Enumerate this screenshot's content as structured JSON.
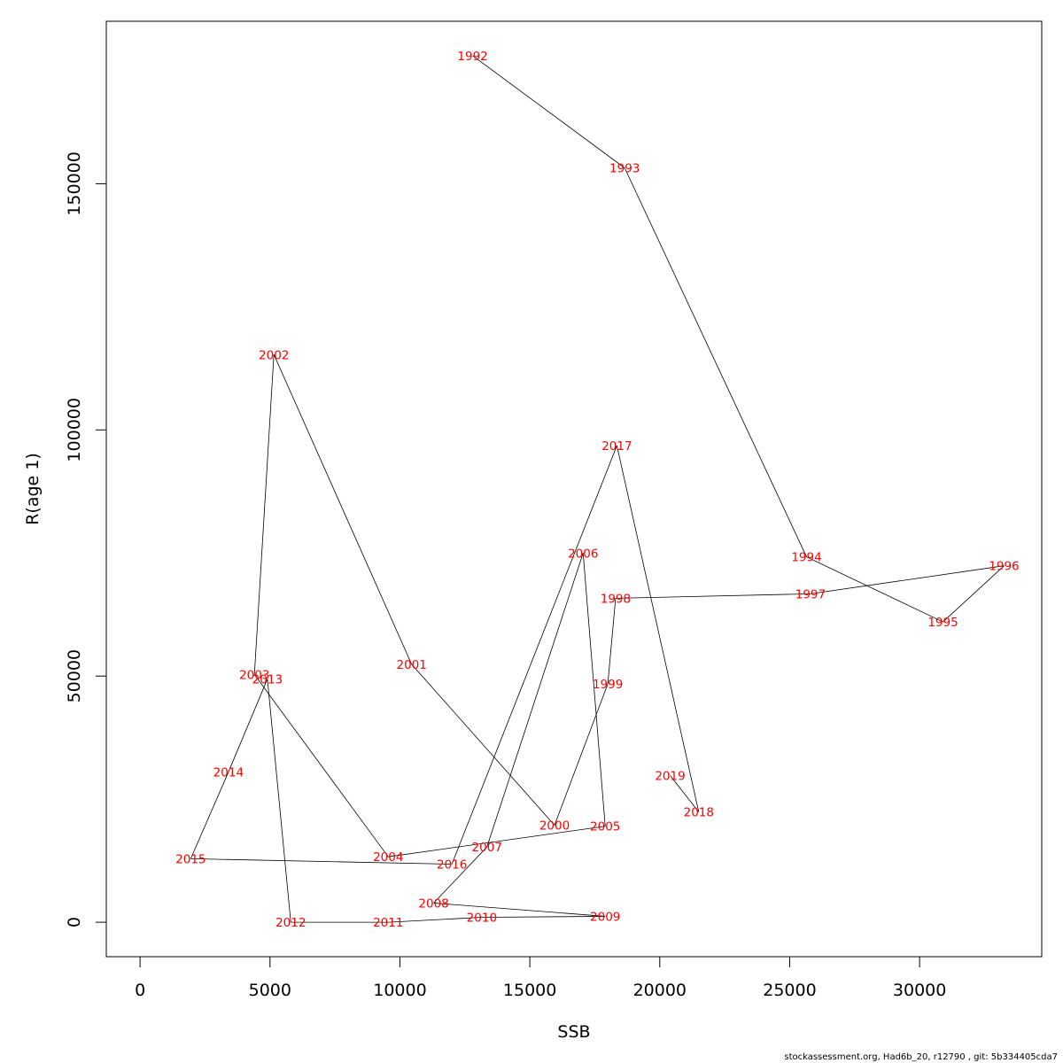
{
  "chart_data": {
    "type": "line",
    "xlabel": "SSB",
    "ylabel": "R(age 1)",
    "xlim": [
      -1300,
      34700
    ],
    "ylim": [
      -7000,
      183000
    ],
    "x_ticks": [
      0,
      5000,
      10000,
      15000,
      20000,
      25000,
      30000
    ],
    "y_ticks": [
      0,
      50000,
      100000,
      150000
    ],
    "grid": false,
    "points": [
      {
        "year": "1992",
        "x": 12800,
        "y": 176000
      },
      {
        "year": "1993",
        "x": 18650,
        "y": 153200
      },
      {
        "year": "1994",
        "x": 25650,
        "y": 74200
      },
      {
        "year": "1995",
        "x": 30900,
        "y": 61000
      },
      {
        "year": "1996",
        "x": 33250,
        "y": 72400
      },
      {
        "year": "1997",
        "x": 25800,
        "y": 66700
      },
      {
        "year": "1998",
        "x": 18300,
        "y": 65800
      },
      {
        "year": "1999",
        "x": 18000,
        "y": 48400
      },
      {
        "year": "2000",
        "x": 15950,
        "y": 19700
      },
      {
        "year": "2001",
        "x": 10450,
        "y": 52400
      },
      {
        "year": "2002",
        "x": 5150,
        "y": 115300
      },
      {
        "year": "2003",
        "x": 4400,
        "y": 50300
      },
      {
        "year": "2004",
        "x": 9550,
        "y": 13300
      },
      {
        "year": "2005",
        "x": 17900,
        "y": 19500
      },
      {
        "year": "2006",
        "x": 17050,
        "y": 75000
      },
      {
        "year": "2007",
        "x": 13350,
        "y": 15300
      },
      {
        "year": "2008",
        "x": 11300,
        "y": 3900
      },
      {
        "year": "2009",
        "x": 17900,
        "y": 1200
      },
      {
        "year": "2010",
        "x": 13150,
        "y": 1000
      },
      {
        "year": "2011",
        "x": 9550,
        "y": 0
      },
      {
        "year": "2012",
        "x": 5800,
        "y": 0
      },
      {
        "year": "2013",
        "x": 4900,
        "y": 49400
      },
      {
        "year": "2014",
        "x": 3400,
        "y": 30500
      },
      {
        "year": "2015",
        "x": 1950,
        "y": 12900
      },
      {
        "year": "2016",
        "x": 12000,
        "y": 11800
      },
      {
        "year": "2017",
        "x": 18350,
        "y": 96800
      },
      {
        "year": "2018",
        "x": 21500,
        "y": 22400
      },
      {
        "year": "2019",
        "x": 20400,
        "y": 29800
      }
    ]
  },
  "footer": {
    "text": "stockassessment.org, Had6b_20, r12790 , git: 5b334405cda7"
  },
  "colors": {
    "label": "#ff0000",
    "line": "#000000"
  }
}
